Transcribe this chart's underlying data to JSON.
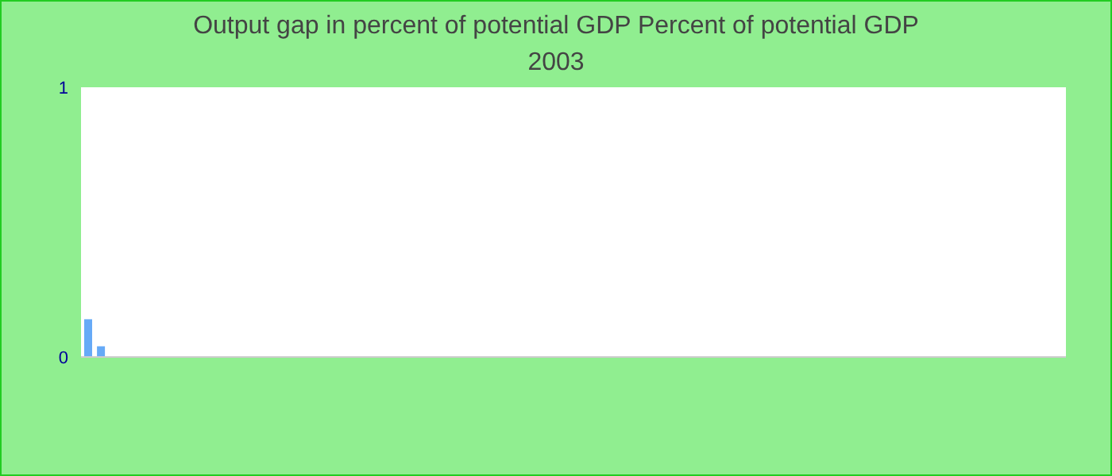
{
  "chart_data": {
    "type": "bar",
    "title": "Output gap in percent of potential GDP  Percent of potential GDP",
    "subtitle": "2003",
    "categories": [
      null,
      null,
      null,
      null,
      null,
      null,
      null,
      null,
      null,
      null,
      null,
      null,
      null,
      null,
      null,
      null,
      null,
      null,
      null,
      null,
      null,
      null,
      null,
      null,
      null,
      null,
      null,
      null,
      null,
      null,
      null,
      null,
      null,
      null,
      null,
      null,
      null,
      null,
      null,
      null,
      null,
      null,
      null,
      null,
      null,
      null,
      null,
      null,
      null,
      null,
      null,
      null,
      null,
      null,
      null,
      null,
      null,
      null,
      null,
      null,
      null,
      null,
      null,
      null,
      null,
      null,
      null,
      null,
      null,
      null,
      null,
      null,
      null,
      null,
      null,
      null,
      null
    ],
    "values": [
      0.14,
      0.04,
      null,
      null,
      null,
      null,
      null,
      null,
      null,
      null,
      null,
      null,
      null,
      null,
      null,
      null,
      null,
      null,
      null,
      null,
      null,
      null,
      null,
      null,
      null,
      null,
      null,
      null,
      null,
      null,
      null,
      null,
      null,
      null,
      null,
      null,
      null,
      null,
      null,
      null,
      null,
      null,
      null,
      null,
      null,
      null,
      null,
      null,
      null,
      null,
      null,
      null,
      null,
      null,
      null,
      null,
      null,
      null,
      null,
      null,
      null,
      null,
      null,
      null,
      null,
      null,
      null,
      null,
      null,
      null,
      null,
      null,
      null,
      null,
      null,
      null,
      null
    ],
    "color": "#66aaf7",
    "ylim": [
      0,
      1
    ],
    "yticks": [
      0,
      1
    ],
    "grid": false,
    "legend": false
  }
}
